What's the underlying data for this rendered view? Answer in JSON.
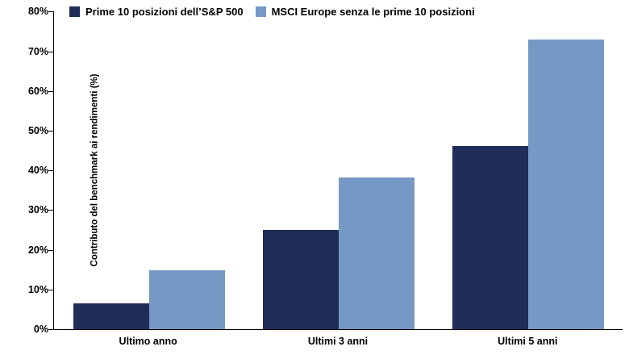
{
  "chart_data": {
    "type": "bar",
    "title": "",
    "xlabel": "",
    "ylabel": "Contributo del benchmark ai rendimenti (%)",
    "categories": [
      "Ultimo anno",
      "Ultimi 3 anni",
      "Ultimi 5 anni"
    ],
    "series": [
      {
        "name": "Prime 10 posizioni dell’S&P 500",
        "color": "#1F2D58",
        "values": [
          6.5,
          25,
          46
        ]
      },
      {
        "name": "MSCI Europe senza le prime 10 posizioni",
        "color": "#7598C4",
        "values": [
          14.8,
          38,
          72.7
        ]
      }
    ],
    "ylim": [
      0,
      80
    ],
    "ytick_step": 10,
    "yticks": [
      "0%",
      "10%",
      "20%",
      "30%",
      "40%",
      "50%",
      "60%",
      "70%",
      "80%"
    ],
    "grid": false,
    "legend_position": "top-left"
  },
  "colors": {
    "axis": "#000000",
    "text": "#000000",
    "background": "#FFFFFF"
  }
}
